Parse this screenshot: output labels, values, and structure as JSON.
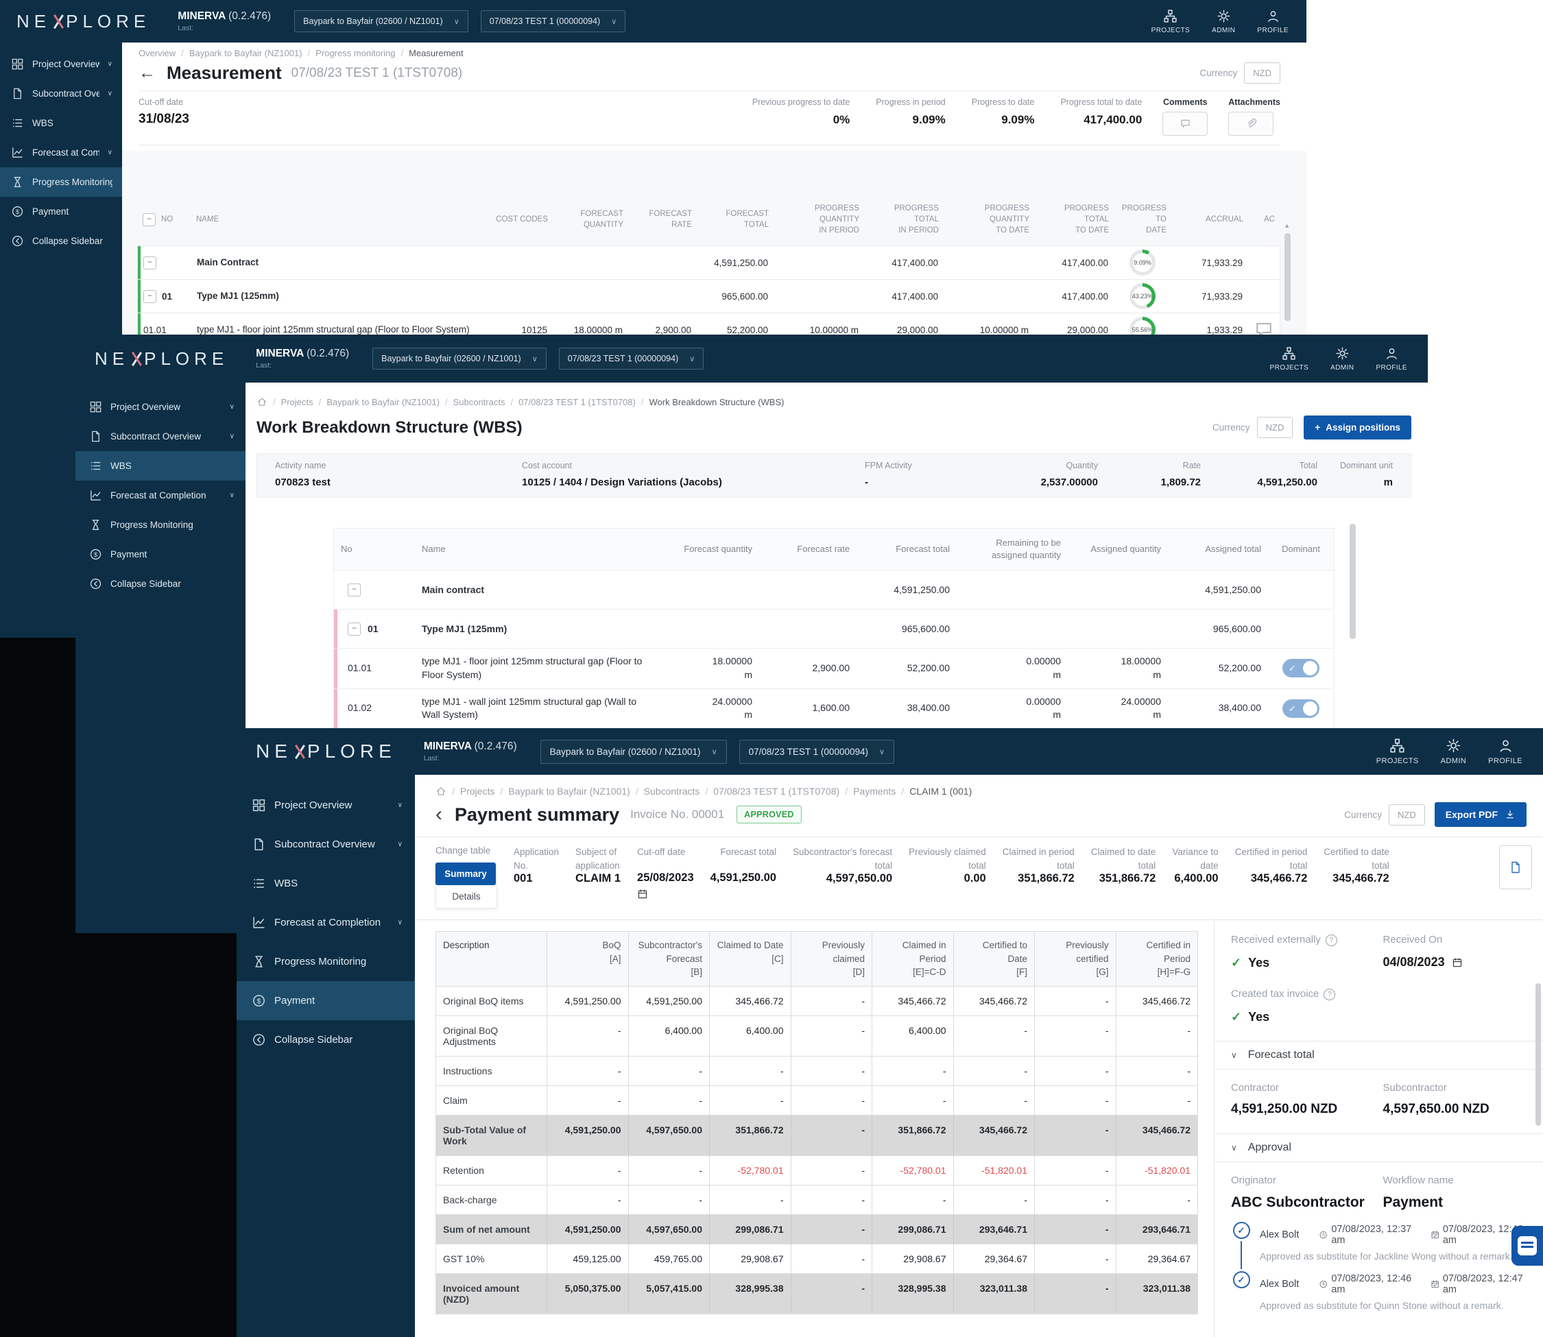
{
  "chrome": {
    "logo_pre": "NE",
    "logo_post": "PLORE",
    "app_name": "MINERVA",
    "app_version": "(0.2.476)",
    "last_label": "Last:",
    "project_select": "Baypark to Bayfair (02600 / NZ1001)",
    "period_select": "07/08/23 TEST 1 (00000094)",
    "nav": [
      {
        "id": "projects",
        "label": "PROJECTS",
        "icon": "projects"
      },
      {
        "id": "admin",
        "label": "ADMIN",
        "icon": "gear"
      },
      {
        "id": "profile",
        "label": "PROFILE",
        "icon": "profile"
      }
    ],
    "sidebar": [
      {
        "id": "project-overview",
        "label": "Project Overview",
        "icon": "grid",
        "chevron": true
      },
      {
        "id": "subcontract-overview",
        "label": "Subcontract Overview",
        "icon": "doc",
        "chevron": true
      },
      {
        "id": "wbs",
        "label": "WBS",
        "icon": "list",
        "chevron": false
      },
      {
        "id": "forecast-at-completion",
        "label": "Forecast at Completion",
        "icon": "chart",
        "chevron": true
      },
      {
        "id": "progress-monitoring",
        "label": "Progress Monitoring",
        "icon": "hourglass",
        "chevron": false
      },
      {
        "id": "payment",
        "label": "Payment",
        "icon": "dollar",
        "chevron": false
      },
      {
        "id": "collapse-sidebar",
        "label": "Collapse Sidebar",
        "icon": "collapse",
        "chevron": false
      }
    ]
  },
  "win1": {
    "breadcrumb": [
      "Overview",
      "Baypark to Bayfair (NZ1001)",
      "Progress monitoring",
      "Measurement"
    ],
    "title": "Measurement",
    "subtitle": "07/08/23 TEST 1 (1TST0708)",
    "currency_label": "Currency",
    "currency": "NZD",
    "cutoff_label": "Cut-off date",
    "cutoff": "31/08/23",
    "stats": [
      {
        "label": "Previous progress to date",
        "value": "0%"
      },
      {
        "label": "Progress in period",
        "value": "9.09%"
      },
      {
        "label": "Progress to date",
        "value": "9.09%"
      },
      {
        "label": "Progress total to date",
        "value": "417,400.00"
      }
    ],
    "comments_label": "Comments",
    "attachments_label": "Attachments",
    "table": {
      "columns": [
        "NO",
        "NAME",
        "COST CODES",
        "FORECAST\nQUANTITY",
        "FORECAST\nRATE",
        "FORECAST\nTOTAL",
        "PROGRESS QUANTITY\nIN PERIOD",
        "PROGRESS TOTAL\nIN PERIOD",
        "PROGRESS QUANTITY\nTO DATE",
        "PROGRESS TOTAL\nTO DATE",
        "PROGRESS TO\nDATE",
        "ACCRUAL",
        "AC"
      ],
      "rows": [
        {
          "no": "",
          "name": "Main Contract",
          "bold": true,
          "expander": true,
          "green": true,
          "values": [
            "",
            "",
            "",
            "4,591,250.00",
            "",
            "417,400.00",
            "",
            "417,400.00"
          ],
          "progress_pct": 9.09,
          "progress_label": "9.09%",
          "accrual": "71,933.29",
          "comment": false
        },
        {
          "no": "01",
          "name": "Type MJ1 (125mm)",
          "bold": true,
          "expander": true,
          "green": true,
          "values": [
            "",
            "",
            "",
            "965,600.00",
            "",
            "417,400.00",
            "",
            "417,400.00"
          ],
          "progress_pct": 43.23,
          "progress_label": "43.23%",
          "accrual": "71,933.29",
          "comment": false
        },
        {
          "no": "01.01",
          "name": "type MJ1 - floor joint 125mm structural gap (Floor to Floor System)",
          "bold": false,
          "expander": false,
          "green": true,
          "values": [
            "10125",
            "18.00000 m",
            "2,900.00",
            "52,200.00",
            "10.00000 m",
            "29,000.00",
            "10.00000 m",
            "29,000.00"
          ],
          "progress_pct": 55.56,
          "progress_label": "55.56%",
          "accrual": "1,933.29",
          "comment": true
        }
      ]
    }
  },
  "win2": {
    "breadcrumb": [
      "Projects",
      "Baypark to Bayfair (NZ1001)",
      "Subcontracts",
      "07/08/23 TEST 1 (1TST0708)",
      "Work Breakdown Structure (WBS)"
    ],
    "title": "Work Breakdown Structure (WBS)",
    "currency_label": "Currency",
    "currency": "NZD",
    "assign_button": "Assign positions",
    "info": [
      {
        "label": "Activity name",
        "value": "070823 test"
      },
      {
        "label": "Cost account",
        "value": "10125 / 1404 / Design Variations (Jacobs)"
      },
      {
        "label": "FPM Activity",
        "value": "-"
      },
      {
        "label": "Quantity",
        "value": "2,537.00000"
      },
      {
        "label": "Rate",
        "value": "1,809.72"
      },
      {
        "label": "Total",
        "value": "4,591,250.00"
      },
      {
        "label": "Dominant unit",
        "value": "m"
      }
    ],
    "table": {
      "columns": [
        "No",
        "Name",
        "Forecast quantity",
        "Forecast rate",
        "Forecast total",
        "Remaining to be\nassigned quantity",
        "Assigned quantity",
        "Assigned total",
        "Dominant"
      ],
      "rows": [
        {
          "no": "",
          "name": "Main contract",
          "bold": true,
          "expander": true,
          "accent": false,
          "values": [
            "",
            "",
            "4,591,250.00",
            "",
            "",
            "4,591,250.00"
          ],
          "toggle": false
        },
        {
          "no": "01",
          "name": "Type MJ1 (125mm)",
          "bold": true,
          "expander": true,
          "accent": true,
          "values": [
            "",
            "",
            "965,600.00",
            "",
            "",
            "965,600.00"
          ],
          "toggle": false
        },
        {
          "no": "01.01",
          "name": "type MJ1 - floor joint 125mm structural gap (Floor to Floor System)",
          "bold": false,
          "expander": false,
          "accent": true,
          "values": [
            "18.00000\nm",
            "2,900.00",
            "52,200.00",
            "0.00000\nm",
            "18.00000\nm",
            "52,200.00"
          ],
          "toggle": true
        },
        {
          "no": "01.02",
          "name": "type MJ1 - wall joint 125mm structural gap (Wall to Wall System)",
          "bold": false,
          "expander": false,
          "accent": true,
          "values": [
            "24.00000\nm",
            "1,600.00",
            "38,400.00",
            "0.00000\nm",
            "24.00000\nm",
            "38,400.00"
          ],
          "toggle": true
        }
      ]
    }
  },
  "win3": {
    "breadcrumb": [
      "Projects",
      "Baypark to Bayfair (NZ1001)",
      "Subcontracts",
      "07/08/23 TEST 1 (1TST0708)",
      "Payments",
      "CLAIM 1 (001)"
    ],
    "title": "Payment summary",
    "invoice": "Invoice No. 00001",
    "status": "APPROVED",
    "currency_label": "Currency",
    "currency": "NZD",
    "export_button": "Export PDF",
    "change_table_label": "Change table",
    "summary_btn": "Summary",
    "details_btn": "Details",
    "stats": [
      {
        "label": "Application\nNo.",
        "value": "001",
        "align": "left",
        "calendar": false
      },
      {
        "label": "Subject of\napplication",
        "value": "CLAIM 1",
        "align": "left",
        "calendar": false
      },
      {
        "label": "Cut-off date",
        "value": "25/08/2023",
        "align": "left",
        "calendar": true
      },
      {
        "label": "Forecast total",
        "value": "4,591,250.00",
        "align": "right",
        "calendar": false
      },
      {
        "label": "Subcontractor's forecast\ntotal",
        "value": "4,597,650.00",
        "align": "right",
        "calendar": false
      },
      {
        "label": "Previously claimed\ntotal",
        "value": "0.00",
        "align": "right",
        "calendar": false
      },
      {
        "label": "Claimed in period\ntotal",
        "value": "351,866.72",
        "align": "right",
        "calendar": false
      },
      {
        "label": "Claimed to date\ntotal",
        "value": "351,866.72",
        "align": "right",
        "calendar": false
      },
      {
        "label": "Variance to\ndate",
        "value": "6,400.00",
        "align": "right",
        "calendar": false
      },
      {
        "label": "Certified in period\ntotal",
        "value": "345,466.72",
        "align": "right",
        "calendar": false
      },
      {
        "label": "Certified to date\ntotal",
        "value": "345,466.72",
        "align": "right",
        "calendar": false
      }
    ],
    "table": {
      "columns": [
        "Description",
        "BoQ\n[A]",
        "Subcontractor's Forecast\n[B]",
        "Claimed to Date\n[C]",
        "Previously claimed\n[D]",
        "Claimed in Period\n[E]=C-D",
        "Certified to Date\n[F]",
        "Previously certified\n[G]",
        "Certified in Period\n[H]=F-G"
      ],
      "rows": [
        {
          "label": "Original BoQ items",
          "shaded": false,
          "values": [
            "4,591,250.00",
            "4,591,250.00",
            "345,466.72",
            "-",
            "345,466.72",
            "345,466.72",
            "-",
            "345,466.72"
          ]
        },
        {
          "label": "Original BoQ Adjustments",
          "shaded": false,
          "values": [
            "-",
            "6,400.00",
            "6,400.00",
            "-",
            "6,400.00",
            "-",
            "-",
            "-"
          ]
        },
        {
          "label": "Instructions",
          "shaded": false,
          "values": [
            "-",
            "-",
            "-",
            "-",
            "-",
            "-",
            "-",
            "-"
          ]
        },
        {
          "label": "Claim",
          "shaded": false,
          "values": [
            "-",
            "-",
            "-",
            "-",
            "-",
            "-",
            "-",
            "-"
          ]
        },
        {
          "label": "Sub-Total Value of Work",
          "shaded": true,
          "values": [
            "4,591,250.00",
            "4,597,650.00",
            "351,866.72",
            "-",
            "351,866.72",
            "345,466.72",
            "-",
            "345,466.72"
          ]
        },
        {
          "label": "Retention",
          "shaded": false,
          "values": [
            "-",
            "-",
            "-52,780.01",
            "-",
            "-52,780.01",
            "-51,820.01",
            "-",
            "-51,820.01"
          ]
        },
        {
          "label": "Back-charge",
          "shaded": false,
          "values": [
            "-",
            "-",
            "-",
            "-",
            "-",
            "-",
            "-",
            "-"
          ]
        },
        {
          "label": "Sum of net amount",
          "shaded": true,
          "values": [
            "4,591,250.00",
            "4,597,650.00",
            "299,086.71",
            "-",
            "299,086.71",
            "293,646.71",
            "-",
            "293,646.71"
          ]
        },
        {
          "label": "GST 10%",
          "shaded": false,
          "values": [
            "459,125.00",
            "459,765.00",
            "29,908.67",
            "-",
            "29,908.67",
            "29,364.67",
            "-",
            "29,364.67"
          ]
        },
        {
          "label": "Invoiced amount (NZD)",
          "shaded": true,
          "values": [
            "5,050,375.00",
            "5,057,415.00",
            "328,995.38",
            "-",
            "328,995.38",
            "323,011.38",
            "-",
            "323,011.38"
          ]
        }
      ]
    },
    "panel": {
      "received_externally_label": "Received externally",
      "received_externally": "Yes",
      "received_on_label": "Received On",
      "received_on": "04/08/2023",
      "created_tax_label": "Created tax invoice",
      "created_tax": "Yes",
      "forecast_section": "Forecast total",
      "contractor_label": "Contractor",
      "contractor_total": "4,591,250.00 NZD",
      "subcontractor_label": "Subcontractor",
      "subcontractor_total": "4,597,650.00 NZD",
      "approval_section": "Approval",
      "originator_label": "Originator",
      "originator": "ABC Subcontractor",
      "workflow_label": "Workflow name",
      "workflow": "Payment",
      "steps": [
        {
          "name": "Alex Bolt",
          "time1": "07/08/2023, 12:37 am",
          "time2": "07/08/2023, 12:46 am",
          "remark": "Approved as substitute for Jackline Wong without a remark."
        },
        {
          "name": "Alex Bolt",
          "time1": "07/08/2023, 12:46 am",
          "time2": "07/08/2023, 12:47 am",
          "remark": "Approved as substitute for Quinn Stone without a remark."
        }
      ]
    }
  }
}
